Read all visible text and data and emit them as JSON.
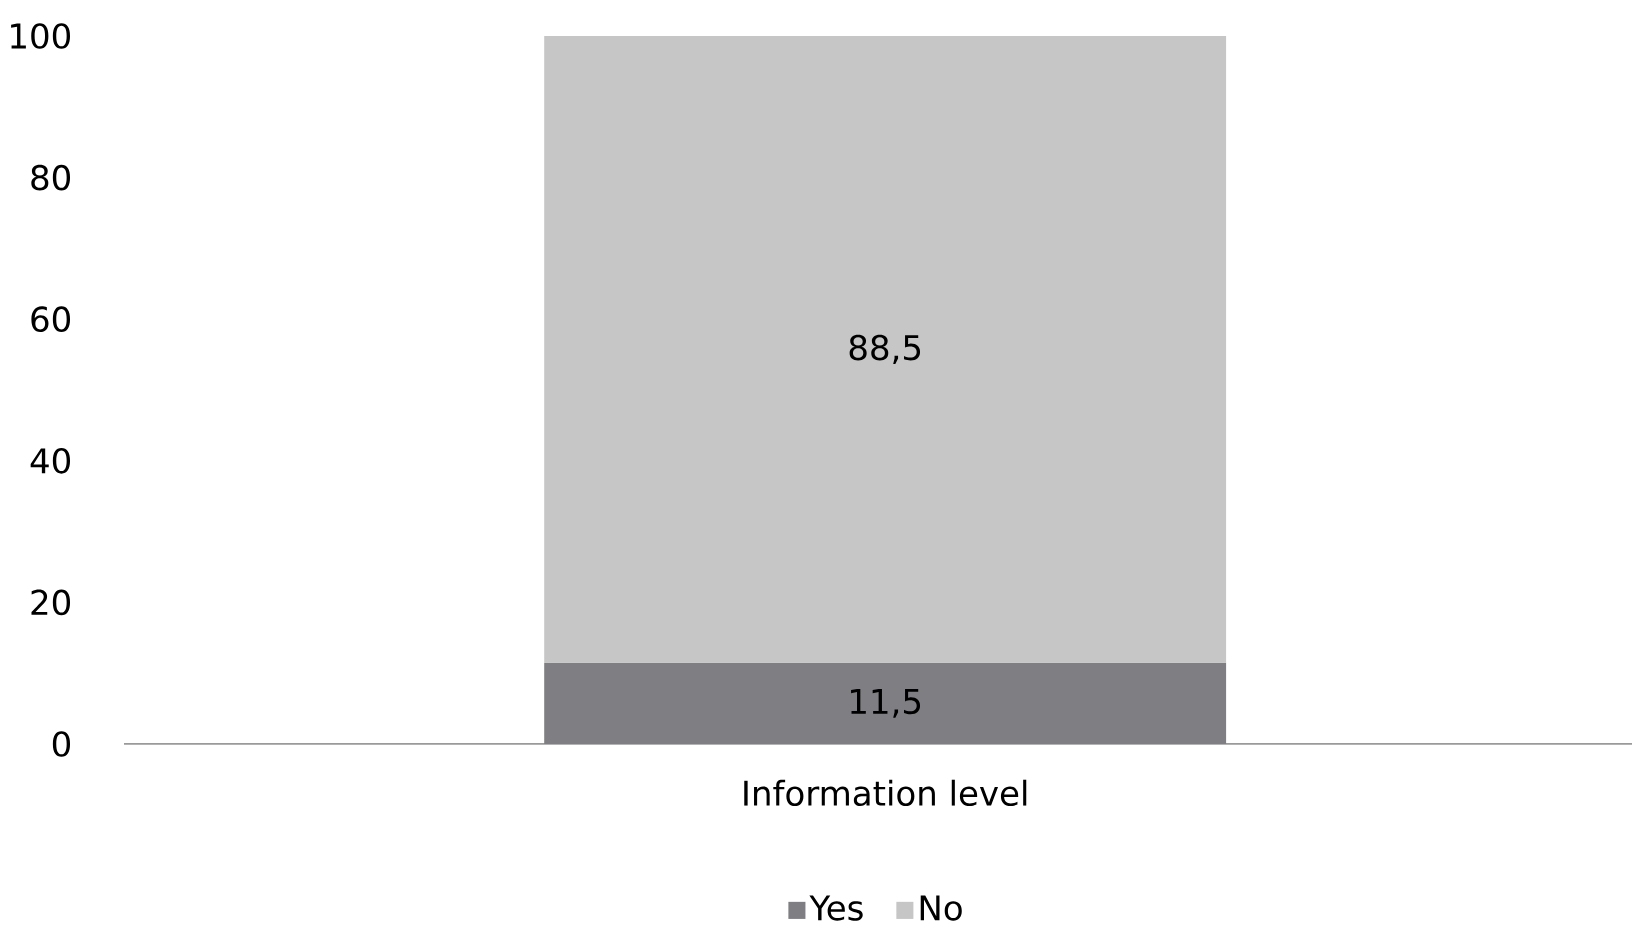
{
  "chart_data": {
    "type": "bar",
    "stacked": true,
    "categories": [
      "Information level"
    ],
    "series": [
      {
        "name": "Yes",
        "color": "#7f7e82",
        "values": [
          11.5
        ],
        "value_labels": [
          "11,5"
        ]
      },
      {
        "name": "No",
        "color": "#c6c6c6",
        "values": [
          88.5
        ],
        "value_labels": [
          "88,5"
        ]
      }
    ],
    "ylim": [
      0,
      100
    ],
    "yticks": [
      0,
      20,
      40,
      60,
      80,
      100
    ],
    "legend": "bottom",
    "grid": false
  }
}
